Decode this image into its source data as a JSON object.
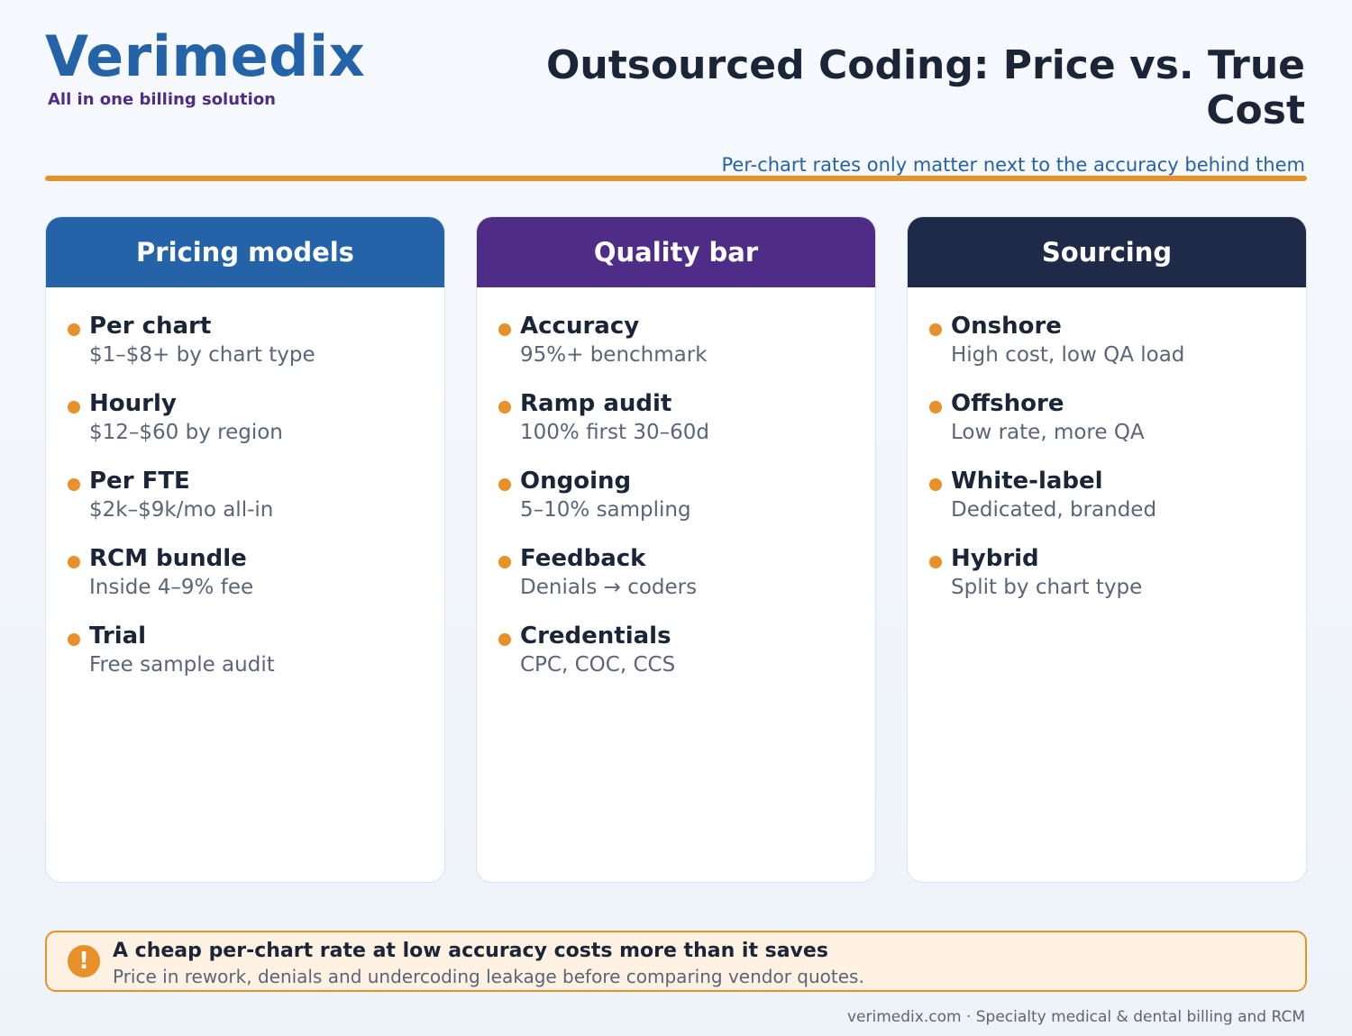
{
  "brand": {
    "name": "Verimedix",
    "tagline": "All in one billing solution"
  },
  "header": {
    "title": "Outsourced Coding: Price vs. True Cost",
    "subtitle": "Per-chart rates only matter next to the accuracy behind them"
  },
  "colors": {
    "accent": "#e8902a",
    "blue": "#2563a8",
    "purple": "#4f2d87",
    "navy": "#1e2a48"
  },
  "columns": [
    {
      "heading": "Pricing models",
      "header_color": "#2563a8",
      "items": [
        {
          "title": "Per chart",
          "detail": "$1–$8+ by chart type"
        },
        {
          "title": "Hourly",
          "detail": "$12–$60 by region"
        },
        {
          "title": "Per FTE",
          "detail": "$2k–$9k/mo all-in"
        },
        {
          "title": "RCM bundle",
          "detail": "Inside 4–9% fee"
        },
        {
          "title": "Trial",
          "detail": "Free sample audit"
        }
      ]
    },
    {
      "heading": "Quality bar",
      "header_color": "#4f2d87",
      "items": [
        {
          "title": "Accuracy",
          "detail": "95%+ benchmark"
        },
        {
          "title": "Ramp audit",
          "detail": "100% first 30–60d"
        },
        {
          "title": "Ongoing",
          "detail": "5–10% sampling"
        },
        {
          "title": "Feedback",
          "detail": "Denials → coders"
        },
        {
          "title": "Credentials",
          "detail": "CPC, COC, CCS"
        }
      ]
    },
    {
      "heading": "Sourcing",
      "header_color": "#1e2a48",
      "items": [
        {
          "title": "Onshore",
          "detail": "High cost, low QA load"
        },
        {
          "title": "Offshore",
          "detail": "Low rate, more QA"
        },
        {
          "title": "White-label",
          "detail": "Dedicated, branded"
        },
        {
          "title": "Hybrid",
          "detail": "Split by chart type"
        }
      ]
    }
  ],
  "callout": {
    "icon": "exclamation-icon",
    "icon_glyph": "!",
    "title": "A cheap per-chart rate at low accuracy costs more than it saves",
    "body": "Price in rework, denials and undercoding leakage before comparing vendor quotes."
  },
  "footer": {
    "text": "verimedix.com · Specialty medical & dental billing and RCM"
  }
}
